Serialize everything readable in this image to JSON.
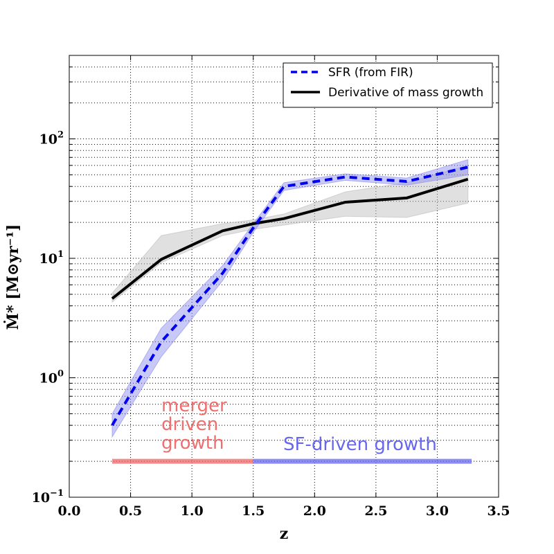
{
  "chart_data": {
    "type": "line",
    "xlabel": "z",
    "ylabel": "Ṁ* [M⊙yr⁻¹]",
    "xlim": [
      0.0,
      3.5
    ],
    "ylim": [
      0.1,
      500
    ],
    "yscale": "log",
    "grid": true,
    "legend_position": "top-right",
    "x_ticks": [
      0.0,
      0.5,
      1.0,
      1.5,
      2.0,
      2.5,
      3.0,
      3.5
    ],
    "x_tick_labels": [
      "0.0",
      "0.5",
      "1.0",
      "1.5",
      "2.0",
      "2.5",
      "3.0",
      "3.5"
    ],
    "y_ticks": [
      {
        "value": 0.1,
        "base": "10",
        "exp": "−1"
      },
      {
        "value": 1,
        "base": "10",
        "exp": "0"
      },
      {
        "value": 10,
        "base": "10",
        "exp": "1"
      },
      {
        "value": 100,
        "base": "10",
        "exp": "2"
      }
    ],
    "series": [
      {
        "name": "SFR (from FIR)",
        "color": "#0000ee",
        "style": "dashed",
        "x": [
          0.35,
          0.75,
          1.25,
          1.5,
          1.75,
          2.25,
          2.75,
          3.25
        ],
        "values": [
          0.4,
          2.0,
          7.5,
          18,
          40,
          48,
          44,
          58
        ],
        "band_lower": [
          0.32,
          1.5,
          6.5,
          16.5,
          37,
          45,
          41,
          50
        ],
        "band_upper": [
          0.5,
          2.6,
          8.7,
          19.5,
          43,
          51,
          47,
          67
        ],
        "band_color": "#8888ee"
      },
      {
        "name": "Derivative of mass growth",
        "color": "#000000",
        "style": "solid",
        "x": [
          0.35,
          0.75,
          1.25,
          1.5,
          1.75,
          2.25,
          2.75,
          3.25
        ],
        "values": [
          4.6,
          9.8,
          17,
          19.5,
          21.5,
          29.5,
          32,
          46
        ],
        "band_lower": [
          4.3,
          9.2,
          15.5,
          17.5,
          19,
          22.5,
          22,
          29
        ],
        "band_upper": [
          5.1,
          15.5,
          19.5,
          21,
          23.5,
          36,
          43,
          60
        ],
        "band_color": "#bbbbbb"
      }
    ],
    "regions": [
      {
        "label": "merger driven growth",
        "lines": [
          "merger",
          "driven",
          "growth"
        ],
        "x_start": 0.35,
        "x_end": 1.5,
        "y": 0.2,
        "color": "#ee6666"
      },
      {
        "label": "SF-driven growth",
        "lines": [
          "SF-driven growth"
        ],
        "x_start": 1.5,
        "x_end": 3.28,
        "y": 0.2,
        "color": "#6666ee"
      }
    ]
  }
}
